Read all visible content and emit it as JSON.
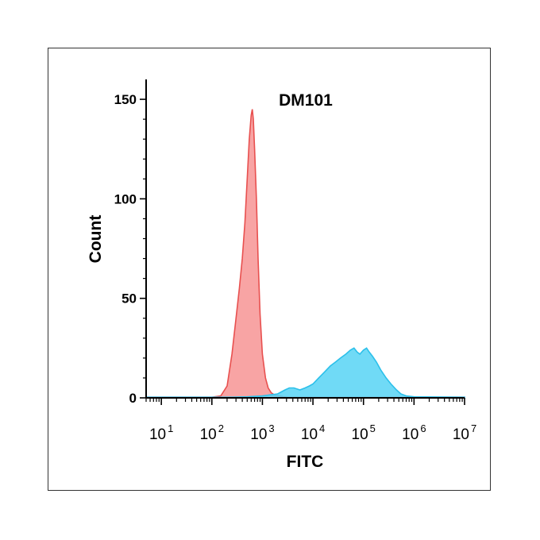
{
  "chart_data": {
    "type": "area",
    "title": "DM101",
    "xlabel": "FITC",
    "ylabel": "Count",
    "x_scale": "log",
    "xlim": [
      5,
      10000000
    ],
    "ylim": [
      0,
      160
    ],
    "y_ticks": [
      0,
      50,
      100,
      150
    ],
    "x_ticks": [
      {
        "value": 10,
        "base": "10",
        "exp": "1"
      },
      {
        "value": 100,
        "base": "10",
        "exp": "2"
      },
      {
        "value": 1000,
        "base": "10",
        "exp": "3"
      },
      {
        "value": 10000,
        "base": "10",
        "exp": "4"
      },
      {
        "value": 100000,
        "base": "10",
        "exp": "5"
      },
      {
        "value": 1000000,
        "base": "10",
        "exp": "6"
      },
      {
        "value": 10000000,
        "base": "10",
        "exp": "7"
      }
    ],
    "grid": false,
    "legend": "none",
    "series": [
      {
        "fill": "#f79a9a",
        "stroke": "#e8504f",
        "points": [
          [
            5,
            0.3
          ],
          [
            100,
            0.3
          ],
          [
            150,
            1
          ],
          [
            200,
            6
          ],
          [
            250,
            22
          ],
          [
            300,
            40
          ],
          [
            350,
            55
          ],
          [
            400,
            70
          ],
          [
            450,
            88
          ],
          [
            500,
            110
          ],
          [
            550,
            130
          ],
          [
            600,
            142
          ],
          [
            630,
            145
          ],
          [
            660,
            140
          ],
          [
            700,
            125
          ],
          [
            760,
            100
          ],
          [
            820,
            70
          ],
          [
            900,
            42
          ],
          [
            1000,
            22
          ],
          [
            1150,
            10
          ],
          [
            1300,
            5
          ],
          [
            1500,
            2.5
          ],
          [
            1800,
            1.2
          ],
          [
            2200,
            1
          ],
          [
            2600,
            0.5
          ],
          [
            3200,
            0.3
          ],
          [
            10000000,
            0.3
          ]
        ]
      },
      {
        "fill": "#57d3f4",
        "stroke": "#2cc0ea",
        "points": [
          [
            5,
            0.3
          ],
          [
            100,
            0.3
          ],
          [
            250,
            0.3
          ],
          [
            500,
            0.5
          ],
          [
            1000,
            1
          ],
          [
            2000,
            2
          ],
          [
            2800,
            4
          ],
          [
            3400,
            5
          ],
          [
            4200,
            5
          ],
          [
            5500,
            4
          ],
          [
            7000,
            5
          ],
          [
            8500,
            6
          ],
          [
            10000,
            7
          ],
          [
            13000,
            10
          ],
          [
            17000,
            13
          ],
          [
            22000,
            16
          ],
          [
            28000,
            18
          ],
          [
            35000,
            20
          ],
          [
            45000,
            22
          ],
          [
            55000,
            24
          ],
          [
            65000,
            25
          ],
          [
            75000,
            23
          ],
          [
            85000,
            22
          ],
          [
            100000,
            24
          ],
          [
            115000,
            25
          ],
          [
            130000,
            23
          ],
          [
            150000,
            21
          ],
          [
            180000,
            18
          ],
          [
            220000,
            14
          ],
          [
            280000,
            10
          ],
          [
            350000,
            7
          ],
          [
            450000,
            4
          ],
          [
            550000,
            2
          ],
          [
            700000,
            1
          ],
          [
            1000000,
            0.5
          ],
          [
            10000000,
            0.3
          ]
        ]
      }
    ]
  }
}
